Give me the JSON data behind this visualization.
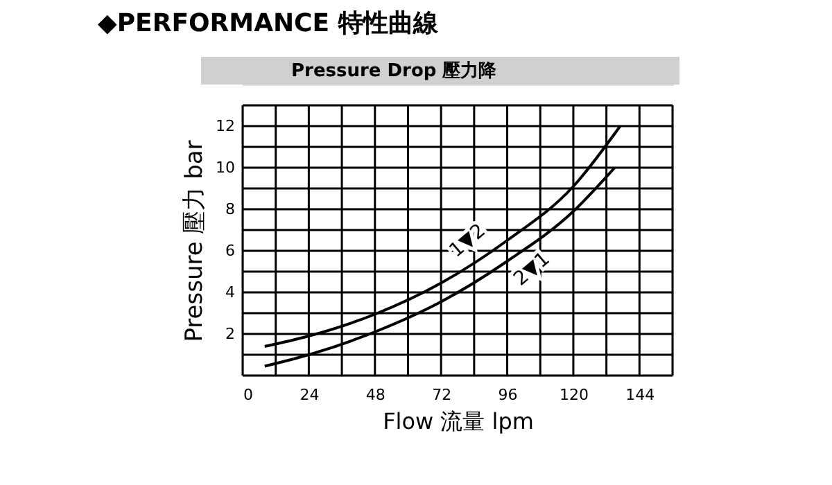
{
  "chart_data": {
    "type": "line",
    "title": "◆PERFORMANCE 特性曲線",
    "subtitle": "Pressure Drop 壓力降",
    "xlabel": "Flow 流量 lpm",
    "ylabel": "Pressure 壓力 bar",
    "series": [
      {
        "color": "#000000",
        "x": [
          8,
          24,
          48,
          72,
          96,
          120,
          137
        ],
        "values": [
          1.4,
          1.9,
          2.95,
          4.45,
          6.5,
          9.1,
          12.0
        ]
      },
      {
        "color": "#000000",
        "x": [
          8,
          24,
          48,
          72,
          96,
          120,
          135
        ],
        "values": [
          0.45,
          1.0,
          2.1,
          3.55,
          5.5,
          7.9,
          10.0
        ]
      }
    ],
    "annotations": [
      {
        "text": "1▼2",
        "x": 96,
        "y": 6.5
      },
      {
        "text": "2▼1",
        "x": 96,
        "y": 5.5
      }
    ],
    "xlim": [
      0,
      156
    ],
    "xticks": [
      0,
      24,
      48,
      72,
      96,
      120,
      144
    ],
    "ylim": [
      0,
      13
    ],
    "yticks": [
      2,
      4,
      6,
      8,
      10,
      12
    ],
    "grid": true,
    "legend": false,
    "marker": "none",
    "line_style": "solid"
  }
}
